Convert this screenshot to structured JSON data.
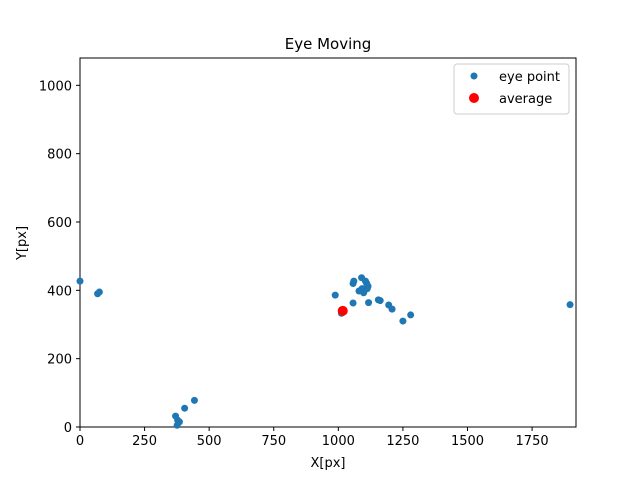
{
  "chart_data": {
    "type": "scatter",
    "title": "Eye Moving",
    "xlabel": "X[px]",
    "ylabel": "Y[px]",
    "xlim": [
      0,
      1920
    ],
    "ylim": [
      0,
      1080
    ],
    "xticks": [
      0,
      250,
      500,
      750,
      1000,
      1250,
      1500,
      1750
    ],
    "yticks": [
      0,
      200,
      400,
      600,
      800,
      1000
    ],
    "grid": false,
    "legend_position": "top-right",
    "series": [
      {
        "name": "eye point",
        "color": "#1f77b4",
        "points": [
          [
            0,
            427
          ],
          [
            68,
            390
          ],
          [
            75,
            395
          ],
          [
            370,
            32
          ],
          [
            378,
            20
          ],
          [
            385,
            15
          ],
          [
            376,
            5
          ],
          [
            405,
            55
          ],
          [
            443,
            78
          ],
          [
            988,
            386
          ],
          [
            1012,
            333
          ],
          [
            1057,
            363
          ],
          [
            1057,
            420
          ],
          [
            1060,
            427
          ],
          [
            1080,
            398
          ],
          [
            1090,
            437
          ],
          [
            1092,
            405
          ],
          [
            1098,
            393
          ],
          [
            1102,
            400
          ],
          [
            1105,
            427
          ],
          [
            1110,
            420
          ],
          [
            1112,
            405
          ],
          [
            1115,
            412
          ],
          [
            1117,
            364
          ],
          [
            1155,
            372
          ],
          [
            1162,
            370
          ],
          [
            1195,
            357
          ],
          [
            1208,
            345
          ],
          [
            1250,
            310
          ],
          [
            1280,
            328
          ],
          [
            1897,
            358
          ]
        ]
      },
      {
        "name": "average",
        "color": "#ff0000",
        "points": [
          [
            1017,
            340
          ]
        ]
      }
    ]
  }
}
